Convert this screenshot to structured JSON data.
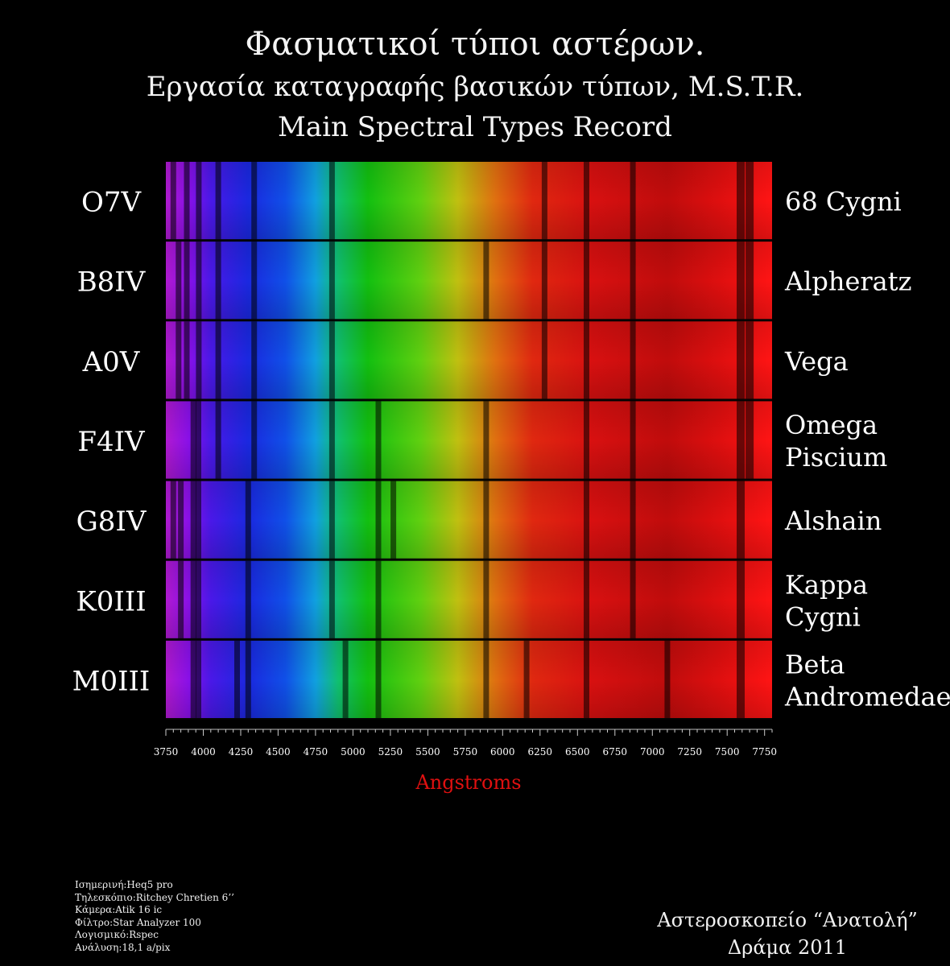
{
  "header": {
    "title": "Φασματικοί τύποι αστέρων.",
    "subtitle": "Εργασία καταγραφής βασικών τύπων, M.S.T.R.",
    "subtitle_en": "Main Spectral Types Record"
  },
  "chart_data": {
    "type": "heatmap",
    "xlabel": "Angstroms",
    "xlim": [
      3750,
      7800
    ],
    "x_ticks": [
      3750,
      4000,
      4250,
      4500,
      4750,
      5000,
      5250,
      5500,
      5750,
      6000,
      6250,
      6500,
      6750,
      7000,
      7250,
      7500,
      7750
    ],
    "colors": {
      "axis_label": "#e01010",
      "background": "#000000",
      "text": "#ffffff"
    },
    "rows": [
      {
        "type": "O7V",
        "star": [
          "68 Cygni"
        ],
        "dark_lines": [
          3800,
          3890,
          3970,
          4100,
          4340,
          4860,
          6280,
          6560,
          6870,
          7590,
          7650
        ]
      },
      {
        "type": "B8IV",
        "star": [
          "Alpheratz"
        ],
        "dark_lines": [
          3835,
          3890,
          3970,
          4100,
          4340,
          4860,
          5890,
          6280,
          6560,
          6870,
          7590,
          7650
        ]
      },
      {
        "type": "A0V",
        "star": [
          "Vega"
        ],
        "dark_lines": [
          3835,
          3890,
          3970,
          4100,
          4340,
          4860,
          6280,
          6560,
          6870,
          7590,
          7650
        ]
      },
      {
        "type": "F4IV",
        "star": [
          "Omega",
          "Piscium"
        ],
        "dark_lines": [
          3934,
          3968,
          4100,
          4340,
          4860,
          5170,
          5890,
          6560,
          6870,
          7590,
          7650
        ]
      },
      {
        "type": "G8IV",
        "star": [
          "Alshain"
        ],
        "dark_lines": [
          3800,
          3850,
          3934,
          3968,
          4300,
          4860,
          5170,
          5270,
          5890,
          6560,
          6870,
          7590
        ]
      },
      {
        "type": "K0III",
        "star": [
          "Kappa",
          "Cygni"
        ],
        "dark_lines": [
          3850,
          3934,
          3968,
          4300,
          4860,
          5170,
          5890,
          6560,
          6870,
          7590
        ]
      },
      {
        "type": "M0III",
        "star": [
          "Beta",
          "Andromedae"
        ],
        "dark_lines": [
          3934,
          3968,
          4226,
          4300,
          4950,
          5170,
          5890,
          6160,
          6560,
          7100,
          7590
        ]
      }
    ]
  },
  "footer": {
    "equipment": [
      "Ισημερινή:Heq5 pro",
      "Τηλεσκόπιο:Ritchey Chretien 6’’",
      "Κάμερα:Atik 16 ic",
      "Φίλτρο:Star Analyzer 100",
      "Λογισμικό:Rspec",
      "Ανάλυση:18,1 a/pix"
    ],
    "observatory": "Αστεροσκοπείο “Ανατολή”",
    "location_year": "Δράμα 2011"
  }
}
